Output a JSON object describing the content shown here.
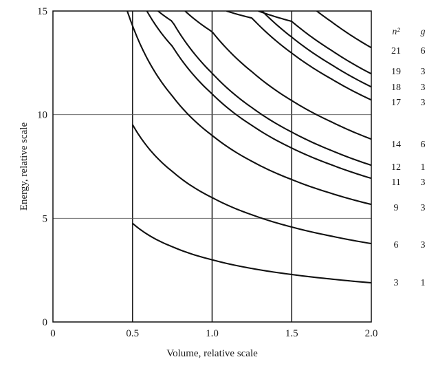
{
  "chart_data": {
    "type": "line",
    "title": "",
    "xlabel": "Volume, relative scale",
    "ylabel": "Energy, relative scale",
    "xlim": [
      0,
      2.0
    ],
    "ylim": [
      0,
      15
    ],
    "xticks": [
      "0",
      "0.5",
      "1.0",
      "1.5",
      "2.0"
    ],
    "yticks": [
      "0",
      "5",
      "10",
      "15"
    ],
    "grid": true,
    "side_table": {
      "headers": [
        "n²",
        "g"
      ],
      "rows": [
        {
          "n2": "21",
          "g": "6"
        },
        {
          "n2": "19",
          "g": "3"
        },
        {
          "n2": "18",
          "g": "3"
        },
        {
          "n2": "17",
          "g": "3"
        },
        {
          "n2": "14",
          "g": "6"
        },
        {
          "n2": "12",
          "g": "1"
        },
        {
          "n2": "11",
          "g": "3"
        },
        {
          "n2": "9",
          "g": "3"
        },
        {
          "n2": "6",
          "g": "3"
        },
        {
          "n2": "3",
          "g": "1"
        }
      ]
    },
    "series": [
      {
        "n2": 3,
        "x_start": 0.5,
        "x_end": 2.0,
        "points": [
          [
            0.5,
            4.76
          ],
          [
            0.75,
            3.63
          ],
          [
            1.0,
            3.0
          ],
          [
            1.25,
            2.58
          ],
          [
            1.5,
            2.29
          ],
          [
            1.75,
            2.07
          ],
          [
            2.0,
            1.89
          ]
        ]
      },
      {
        "n2": 6,
        "x_start": 0.5,
        "x_end": 2.0,
        "points": [
          [
            0.5,
            9.52
          ],
          [
            0.75,
            7.26
          ],
          [
            1.0,
            6.0
          ],
          [
            1.25,
            5.17
          ],
          [
            1.5,
            4.58
          ],
          [
            1.75,
            4.14
          ],
          [
            2.0,
            3.78
          ]
        ]
      },
      {
        "n2": 9,
        "x_start": 0.45,
        "x_end": 2.0,
        "points": [
          [
            0.45,
            15.4
          ],
          [
            0.5,
            14.29
          ],
          [
            0.75,
            10.9
          ],
          [
            1.0,
            9.0
          ],
          [
            1.25,
            7.75
          ],
          [
            1.5,
            6.87
          ],
          [
            1.75,
            6.2
          ],
          [
            2.0,
            5.67
          ]
        ]
      },
      {
        "n2": 11,
        "x_start": 0.59,
        "x_end": 2.0,
        "points": [
          [
            0.59,
            15.0
          ],
          [
            0.75,
            13.3
          ],
          [
            1.0,
            11.0
          ],
          [
            1.25,
            9.48
          ],
          [
            1.5,
            8.39
          ],
          [
            1.75,
            7.58
          ],
          [
            2.0,
            6.93
          ]
        ]
      },
      {
        "n2": 12,
        "x_start": 0.66,
        "x_end": 2.0,
        "points": [
          [
            0.66,
            15.0
          ],
          [
            0.75,
            14.5
          ],
          [
            1.0,
            12.0
          ],
          [
            1.25,
            10.34
          ],
          [
            1.5,
            9.16
          ],
          [
            1.75,
            8.27
          ],
          [
            2.0,
            7.56
          ]
        ]
      },
      {
        "n2": 14,
        "x_start": 0.83,
        "x_end": 2.0,
        "points": [
          [
            0.83,
            15.0
          ],
          [
            1.0,
            14.0
          ],
          [
            1.25,
            12.07
          ],
          [
            1.5,
            10.68
          ],
          [
            1.75,
            9.65
          ],
          [
            2.0,
            8.82
          ]
        ]
      },
      {
        "n2": 17,
        "x_start": 1.09,
        "x_end": 2.0,
        "points": [
          [
            1.09,
            15.0
          ],
          [
            1.25,
            14.66
          ],
          [
            1.5,
            12.97
          ],
          [
            1.75,
            11.72
          ],
          [
            2.0,
            10.71
          ]
        ]
      },
      {
        "n2": 18,
        "x_start": 1.19,
        "x_end": 2.0,
        "points": [
          [
            1.19,
            15.0
          ],
          [
            1.25,
            15.52
          ],
          [
            1.5,
            13.74
          ],
          [
            1.75,
            12.41
          ],
          [
            2.0,
            11.34
          ]
        ]
      },
      {
        "n2": 19,
        "x_start": 1.29,
        "x_end": 2.0,
        "points": [
          [
            1.29,
            15.0
          ],
          [
            1.5,
            14.5
          ],
          [
            1.75,
            13.1
          ],
          [
            2.0,
            11.97
          ]
        ]
      },
      {
        "n2": 21,
        "x_start": 1.5,
        "x_end": 2.0,
        "points": [
          [
            1.5,
            16.03
          ],
          [
            1.75,
            14.48
          ],
          [
            2.0,
            13.23
          ]
        ]
      }
    ]
  }
}
